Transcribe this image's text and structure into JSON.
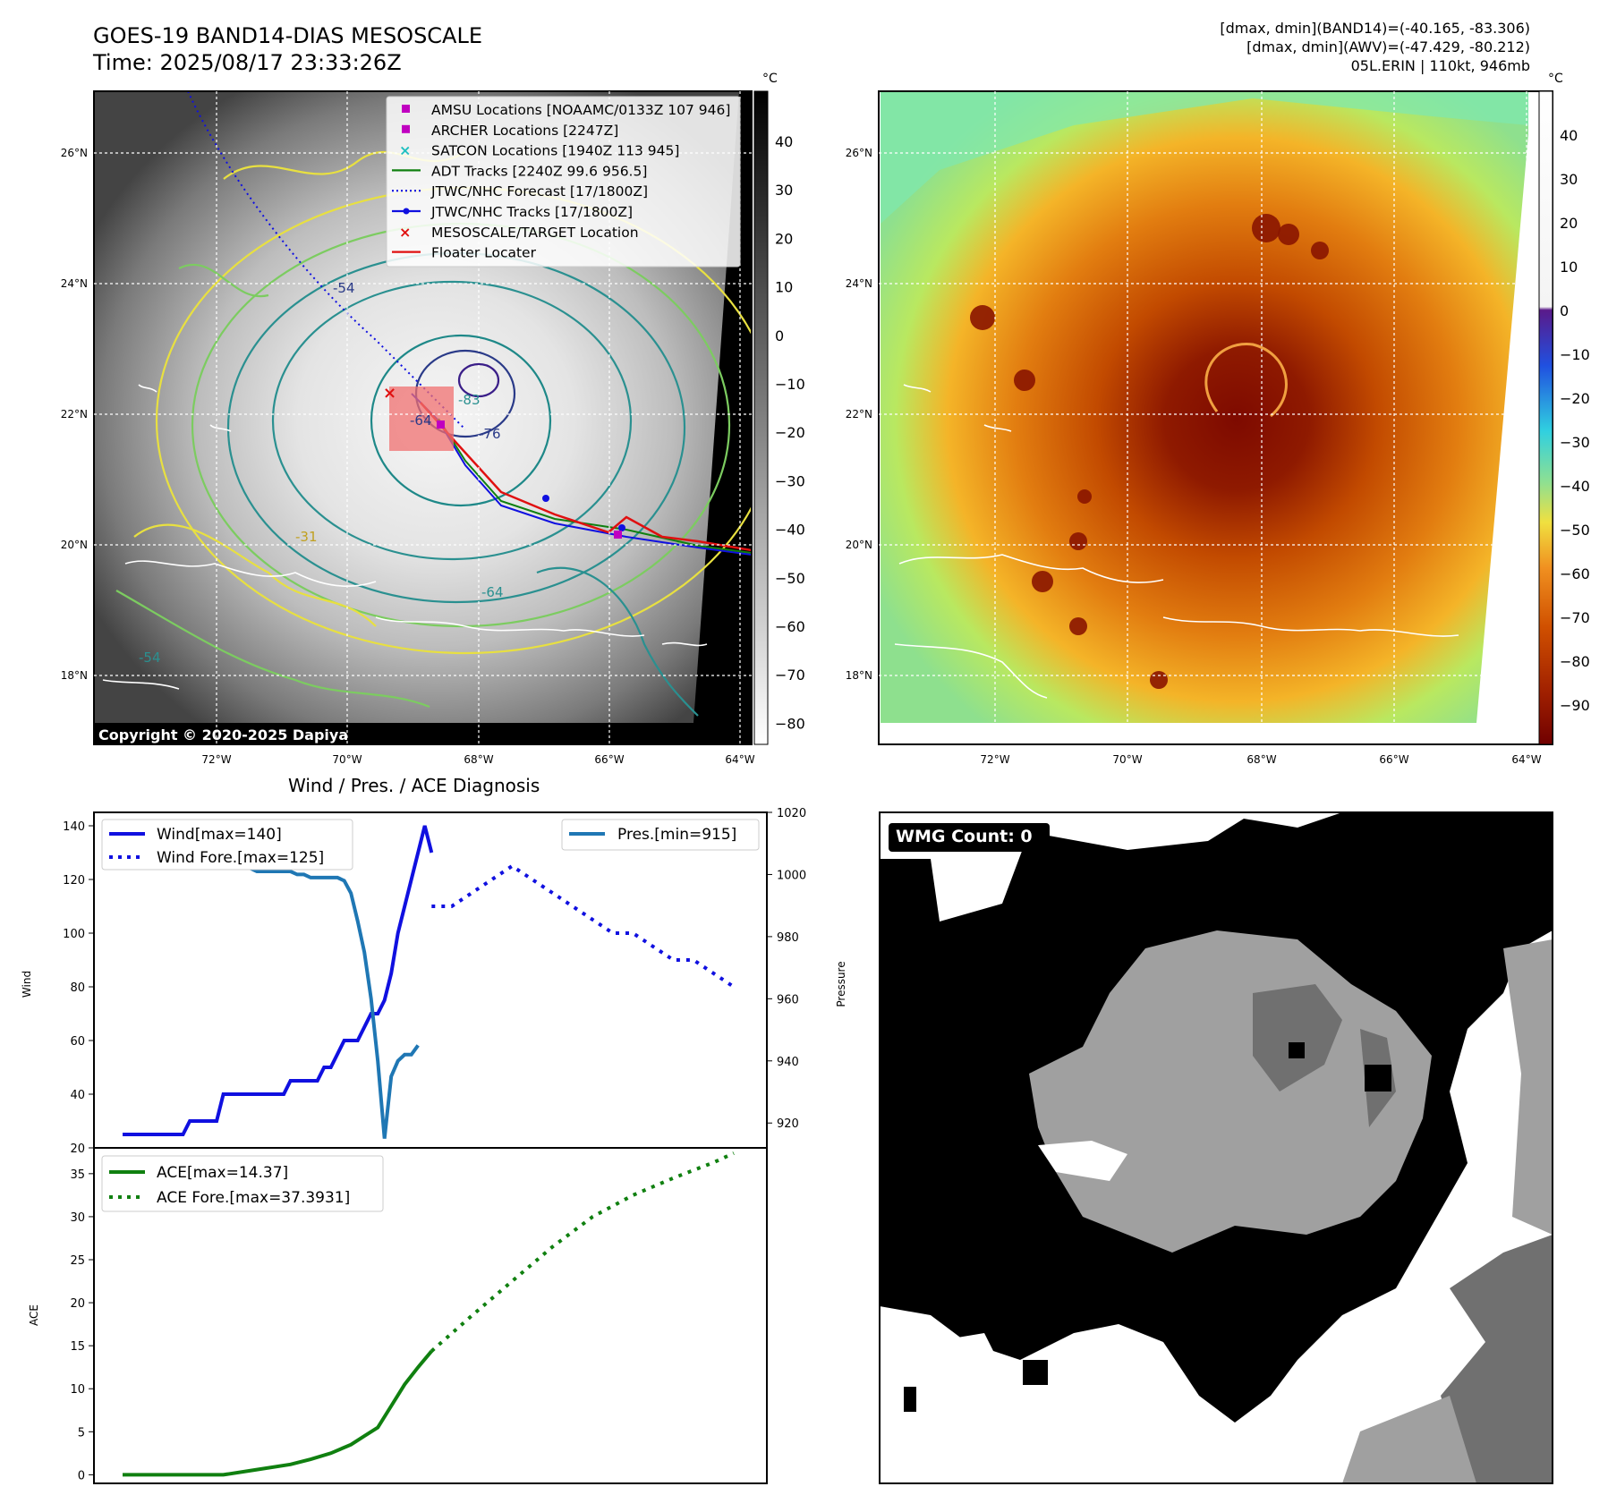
{
  "header": {
    "title_line1": "GOES-19 BAND14-DIAS MESOSCALE",
    "title_line2": "Time: 2025/08/17 23:33:26Z",
    "stats_line1": "[dmax, dmin](BAND14)=(-40.165, -83.306)",
    "stats_line2": "[dmax, dmin](AWV)=(-47.429, -80.212)",
    "stats_line3": "05L.ERIN | 110kt, 946mb"
  },
  "maps": {
    "lon_ticks": [
      "72°W",
      "70°W",
      "68°W",
      "66°W",
      "64°W"
    ],
    "lat_ticks": [
      "26°N",
      "24°N",
      "22°N",
      "20°N",
      "18°N"
    ],
    "copyright": "Copyright © 2020-2025 Dapiya",
    "left_colorbar": {
      "unit": "°C",
      "ticks": [
        "40",
        "30",
        "20",
        "10",
        "0",
        "−10",
        "−20",
        "−30",
        "−40",
        "−50",
        "−60",
        "−70",
        "−80"
      ]
    },
    "right_colorbar": {
      "unit": "°C",
      "ticks": [
        "40",
        "30",
        "20",
        "10",
        "0",
        "−10",
        "−20",
        "−30",
        "−40",
        "−50",
        "−60",
        "−70",
        "−80",
        "−90"
      ]
    },
    "contour_labels": [
      "-54",
      "-64",
      "-76",
      "-83",
      "-31",
      "-64",
      "-54"
    ],
    "legend": [
      {
        "label": "AMSU Locations [NOAAMC/0133Z 107 946]",
        "color": "#c000c0",
        "marker": "square"
      },
      {
        "label": "ARCHER Locations [2247Z]",
        "color": "#c000c0",
        "marker": "square"
      },
      {
        "label": "SATCON Locations [1940Z 113 945]",
        "color": "#20c0c0",
        "marker": "x"
      },
      {
        "label": "ADT Tracks [2240Z 99.6 956.5]",
        "color": "#108010",
        "marker": "line"
      },
      {
        "label": "JTWC/NHC Forecast [17/1800Z]",
        "color": "#1010e0",
        "marker": "dotted"
      },
      {
        "label": "JTWC/NHC Tracks [17/1800Z]",
        "color": "#1010e0",
        "marker": "line-dot"
      },
      {
        "label": "MESOSCALE/TARGET Location",
        "color": "#e01010",
        "marker": "x"
      },
      {
        "label": "Floater Locater",
        "color": "#e01010",
        "marker": "line"
      }
    ]
  },
  "wmg": {
    "label": "WMG Count: 0"
  },
  "chart_data": [
    {
      "type": "line",
      "title": "Wind / Pres. / ACE Diagnosis",
      "ylabel": "Wind",
      "ylim": [
        20,
        145
      ],
      "y2label": "Pressure",
      "y2lim": [
        912,
        1020
      ],
      "x": [
        0,
        1,
        2,
        3,
        4,
        5,
        6,
        7,
        8,
        9,
        10,
        11,
        12,
        13,
        14,
        15,
        16,
        17,
        18,
        19,
        20,
        21,
        22,
        23,
        24,
        25,
        26,
        27,
        28,
        29,
        30,
        31,
        32,
        33,
        34,
        35,
        36,
        37,
        38,
        39,
        40,
        41,
        42,
        43,
        44,
        45,
        46,
        47,
        48,
        49,
        50,
        51,
        52,
        53,
        54,
        55,
        56,
        57,
        58,
        59,
        60,
        61,
        62,
        63,
        64,
        65,
        66,
        67,
        68
      ],
      "y_ticks": [
        "140",
        "120",
        "100",
        "80",
        "60",
        "40",
        "20"
      ],
      "y2_ticks": [
        "1020",
        "1000",
        "980",
        "960",
        "940",
        "920"
      ],
      "series": [
        {
          "name": "Wind[max=140]",
          "axis": "left",
          "color": "#1010e0",
          "style": "solid",
          "x": [
            0,
            1,
            2,
            3,
            4,
            5,
            6,
            7,
            8,
            9,
            10,
            11,
            12,
            13,
            14,
            15,
            16,
            17,
            18,
            19,
            20,
            21,
            22,
            23,
            24,
            25,
            26,
            27,
            28,
            29,
            30,
            31,
            32,
            33,
            34,
            35,
            36,
            37,
            38,
            39,
            40,
            41,
            42,
            43,
            44,
            45,
            46
          ],
          "values": [
            25,
            25,
            25,
            25,
            25,
            25,
            25,
            25,
            25,
            25,
            30,
            30,
            30,
            30,
            30,
            40,
            40,
            40,
            40,
            40,
            40,
            40,
            40,
            40,
            40,
            45,
            45,
            45,
            45,
            45,
            50,
            50,
            55,
            60,
            60,
            60,
            65,
            70,
            70,
            75,
            85,
            100,
            110,
            120,
            130,
            140,
            130
          ]
        },
        {
          "name": "Wind Fore.[max=125]",
          "axis": "left",
          "color": "#1010e0",
          "style": "dotted",
          "x": [
            46,
            49,
            52,
            55,
            58,
            61,
            64,
            67,
            70,
            73,
            76,
            79,
            82,
            85,
            88,
            91
          ],
          "values": [
            110,
            110,
            115,
            120,
            125,
            120,
            115,
            110,
            105,
            100,
            100,
            95,
            90,
            90,
            85,
            80
          ]
        },
        {
          "name": "Pres.[min=915]",
          "axis": "right",
          "color": "#1f77b4",
          "style": "solid",
          "x": [
            0,
            1,
            2,
            3,
            4,
            5,
            6,
            7,
            8,
            9,
            10,
            11,
            12,
            13,
            14,
            15,
            16,
            17,
            18,
            19,
            20,
            21,
            22,
            23,
            24,
            25,
            26,
            27,
            28,
            29,
            30,
            31,
            32,
            33,
            34,
            35,
            36,
            37,
            38,
            39,
            40,
            41,
            42,
            43,
            44,
            45,
            46
          ],
          "values": [
            1015,
            1015,
            1008,
            1007,
            1007,
            1007,
            1007,
            1006,
            1006,
            1006,
            1006,
            1005,
            1005,
            1004,
            1004,
            1003,
            1003,
            1002,
            1002,
            1002,
            1001,
            1001,
            1001,
            1001,
            1001,
            1001,
            1000,
            1000,
            999,
            999,
            999,
            999,
            999,
            998,
            994,
            985,
            975,
            960,
            940,
            915,
            935,
            940,
            942,
            942,
            945,
            null,
            null
          ]
        }
      ]
    },
    {
      "type": "line",
      "ylabel": "ACE",
      "ylim": [
        -1,
        38
      ],
      "y_ticks": [
        "35",
        "30",
        "25",
        "20",
        "15",
        "10",
        "5",
        "0"
      ],
      "series": [
        {
          "name": "ACE[max=14.37]",
          "color": "#108010",
          "style": "solid",
          "x": [
            0,
            5,
            10,
            15,
            20,
            25,
            28,
            31,
            34,
            36,
            38,
            40,
            42,
            44,
            46
          ],
          "values": [
            0,
            0,
            0,
            0,
            0.6,
            1.2,
            1.8,
            2.5,
            3.5,
            4.5,
            5.5,
            8.0,
            10.5,
            12.5,
            14.37
          ]
        },
        {
          "name": "ACE Fore.[max=37.3931]",
          "color": "#108010",
          "style": "dotted",
          "x": [
            46,
            52,
            58,
            64,
            70,
            76,
            82,
            88,
            91
          ],
          "values": [
            14.37,
            18.5,
            22.5,
            26.5,
            30,
            32.5,
            34.5,
            36.3,
            37.39
          ]
        }
      ]
    }
  ]
}
